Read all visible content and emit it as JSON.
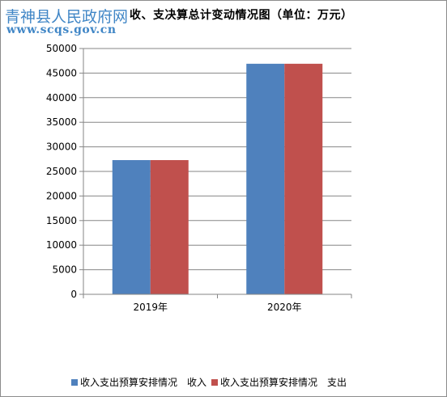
{
  "watermark": {
    "name": "青神县人民政府网",
    "url": "www.scqs.gov.cn"
  },
  "chart_data": {
    "type": "bar",
    "title": "收、支决算总计变动情况图（单位：万元）",
    "categories": [
      "2019年",
      "2020年"
    ],
    "series": [
      {
        "name": "收入支出预算安排情况　收入",
        "color": "#4f81bd",
        "values": [
          27300,
          46900
        ]
      },
      {
        "name": "收入支出预算安排情况　支出",
        "color": "#c0504d",
        "values": [
          27300,
          46900
        ]
      }
    ],
    "ylim": [
      0,
      50000
    ],
    "yticks": [
      "0",
      "5000",
      "10000",
      "15000",
      "20000",
      "25000",
      "30000",
      "35000",
      "40000",
      "45000",
      "50000"
    ],
    "grid": true,
    "legend": "bottom"
  }
}
